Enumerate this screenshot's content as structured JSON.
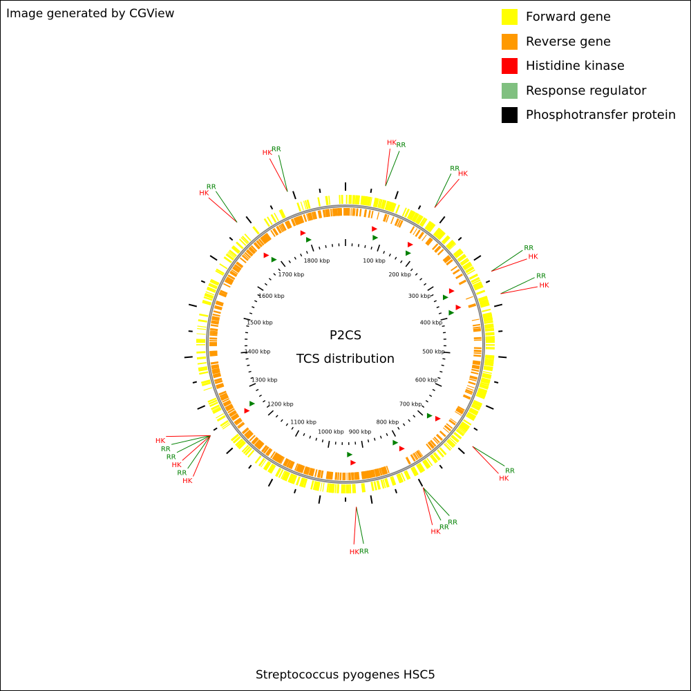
{
  "header": {
    "credit": "Image generated by CGView"
  },
  "legend": [
    {
      "label": "Forward gene",
      "color": "#ffff00"
    },
    {
      "label": "Reverse gene",
      "color": "#ff9900"
    },
    {
      "label": "Histidine kinase",
      "color": "#ff0000"
    },
    {
      "label": "Response regulator",
      "color": "#80c080"
    },
    {
      "label": "Phosphotransfer protein",
      "color": "#000000"
    }
  ],
  "map": {
    "title_line1": "P2CS",
    "title_line2": "TCS distribution",
    "organism": "Streptococcus pyogenes HSC5",
    "genome_kbp": 1900,
    "tick_labels": [
      "100 kbp",
      "200 kbp",
      "300 kbp",
      "400 kbp",
      "500 kbp",
      "600 kbp",
      "700 kbp",
      "800 kbp",
      "900 kbp",
      "1000 kbp",
      "1100 kbp",
      "1200 kbp",
      "1300 kbp",
      "1400 kbp",
      "1500 kbp",
      "1600 kbp",
      "1700 kbp",
      "1800 kbp"
    ],
    "tcs_calls": [
      {
        "pair": [
          "HK",
          "RR"
        ],
        "pos_kbp": 75
      },
      {
        "pair": [
          "RR",
          "HK"
        ],
        "pos_kbp": 175
      },
      {
        "pair": [
          "RR",
          "HK"
        ],
        "pos_kbp": 335
      },
      {
        "pair": [
          "RR",
          "HK"
        ],
        "pos_kbp": 380
      },
      {
        "pair": [
          "RR",
          "HK"
        ],
        "pos_kbp": 680
      },
      {
        "pair": [
          "RR",
          "RR",
          "HK"
        ],
        "pos_kbp": 800
      },
      {
        "pair": [
          "RR",
          "HK"
        ],
        "pos_kbp": 930
      },
      {
        "pair": [
          "HK",
          "RR",
          "HK",
          "RR",
          "RR",
          "HK"
        ],
        "pos_kbp": 1245
      },
      {
        "pair": [
          "HK",
          "RR"
        ],
        "pos_kbp": 1680
      },
      {
        "pair": [
          "HK",
          "RR"
        ],
        "pos_kbp": 1790
      }
    ],
    "colors": {
      "hk": "#ff0000",
      "rr": "#008000",
      "forward": "#ffff00",
      "reverse": "#ff9900",
      "backbone": "#808080"
    }
  }
}
